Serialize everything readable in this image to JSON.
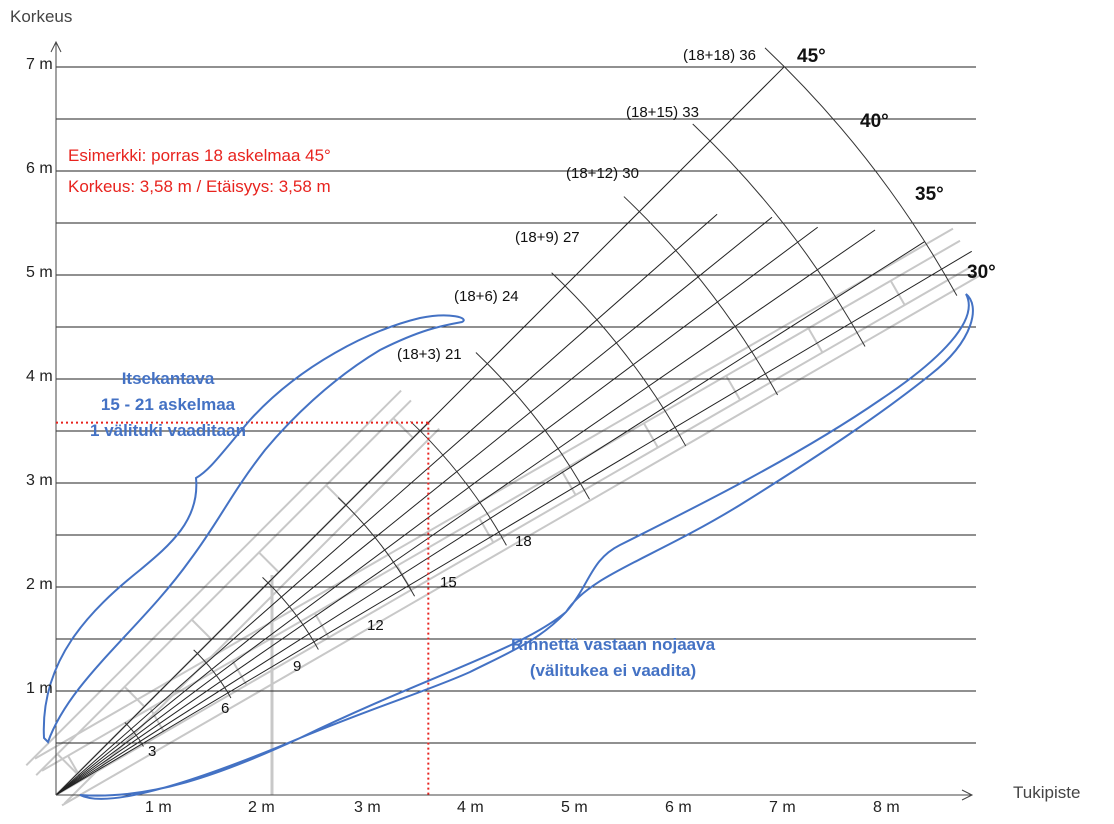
{
  "axes": {
    "y_title": "Korkeus",
    "x_title": "Tukipiste",
    "y_ticks": [
      "1 m",
      "2 m",
      "3 m",
      "4 m",
      "5 m",
      "6 m",
      "7 m"
    ],
    "x_ticks": [
      "1 m",
      "2 m",
      "3 m",
      "4 m",
      "5 m",
      "6 m",
      "7 m",
      "8 m"
    ]
  },
  "step_labels": {
    "short": [
      "3",
      "6",
      "9",
      "12",
      "15",
      "18"
    ],
    "long": [
      "(18+3) 21",
      "(18+6) 24",
      "(18+9) 27",
      "(18+12) 30",
      "(18+15) 33",
      "(18+18) 36"
    ]
  },
  "angles": [
    "30°",
    "35°",
    "40°",
    "45°"
  ],
  "example": {
    "line1": "Esimerkki: porras 18 askelmaa 45°",
    "line2": "Korkeus: 3,58 m / Etäisyys: 3,58 m",
    "height_m": 3.58,
    "distance_m": 3.58
  },
  "callouts": {
    "self_supporting": [
      "Itsekantava",
      "15 - 21 askelmaa",
      "1 välituki vaaditaan"
    ],
    "slope_supported": [
      "Rinnettä vastaan nojaava",
      "(välitukea ei vaadita)"
    ]
  },
  "colors": {
    "grid": "#222222",
    "example": "#e8231e",
    "callout": "#4472c4",
    "stair": "#c8c8c8"
  }
}
